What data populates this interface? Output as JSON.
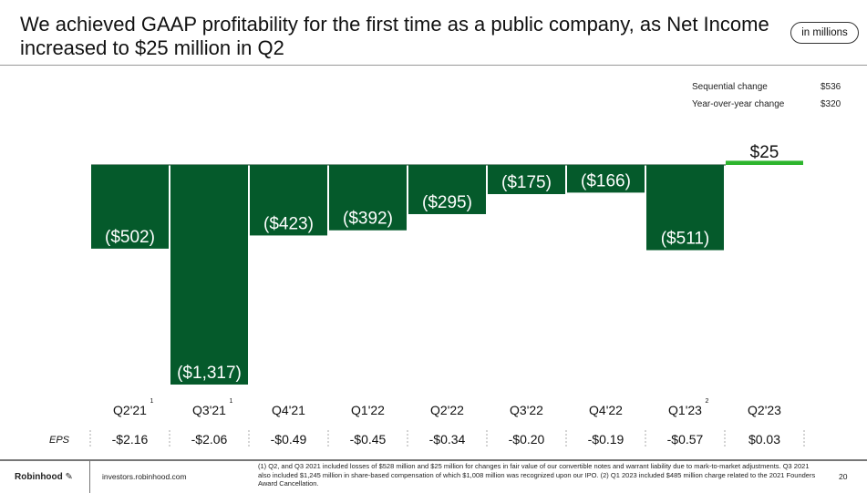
{
  "header": {
    "title": "We achieved GAAP profitability for the first time as a public company, as Net Income increased to $25 million in Q2",
    "units": "in millions"
  },
  "changes": [
    {
      "label": "Sequential change",
      "value": "$536"
    },
    {
      "label": "Year-over-year change",
      "value": "$320"
    }
  ],
  "chart_data": {
    "type": "bar",
    "title": "",
    "categories": [
      "Q2'21",
      "Q3'21",
      "Q4'21",
      "Q1'22",
      "Q2'22",
      "Q3'22",
      "Q4'22",
      "Q1'23",
      "Q2'23"
    ],
    "category_footnotes": [
      "1",
      "1",
      "",
      "",
      "",
      "",
      "",
      "2",
      ""
    ],
    "values": [
      -502,
      -1317,
      -423,
      -392,
      -295,
      -175,
      -166,
      -511,
      25
    ],
    "data_labels": [
      "($502)",
      "($1,317)",
      "($423)",
      "($392)",
      "($295)",
      "($175)",
      "($166)",
      "($511)",
      "$25"
    ],
    "eps_label": "EPS",
    "eps": [
      "-$2.16",
      "-$2.06",
      "-$0.49",
      "-$0.45",
      "-$0.34",
      "-$0.20",
      "-$0.19",
      "-$0.57",
      "$0.03"
    ],
    "colors": {
      "negative": "#055a2b",
      "positive": "#2db52d"
    },
    "grid": false
  },
  "footer": {
    "brand": "Robinhood",
    "url": "investors.robinhood.com",
    "note": "(1) Q2, and Q3 2021 included losses of $528 million and $25 million for changes in fair value of our convertible notes and warrant liability due to mark-to-market adjustments. Q3 2021 also included $1,245 million in share-based compensation of which $1,008 million was recognized upon our IPO. (2) Q1 2023 included $485 million charge related to the 2021 Founders Award Cancellation.",
    "page": "20"
  }
}
